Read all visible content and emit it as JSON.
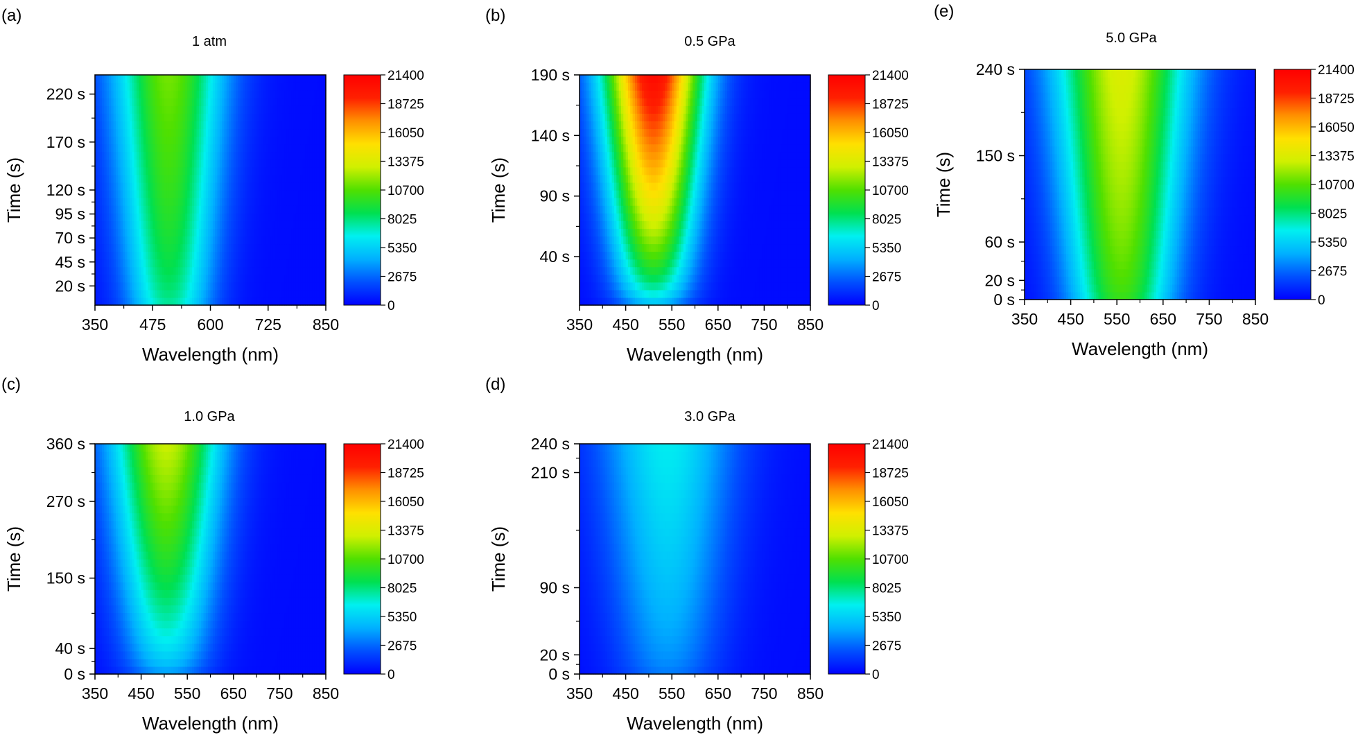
{
  "colorbar_ticks": [
    "21400",
    "18725",
    "16050",
    "13375",
    "10700",
    "8025",
    "5350",
    "2675",
    "0"
  ],
  "colormap": [
    "#0000ff",
    "#0050ff",
    "#00b0ff",
    "#00f0f0",
    "#00e050",
    "#50e000",
    "#d0f000",
    "#ffe000",
    "#ff9000",
    "#ff2000",
    "#ff0000"
  ],
  "chart_data": [
    {
      "type": "heatmap",
      "panel": "(a)",
      "title": "1 atm",
      "xlabel": "Wavelength (nm)",
      "ylabel": "Time (s)",
      "xlim": [
        350,
        850
      ],
      "ylim": [
        0,
        240
      ],
      "xticks": [
        "350",
        "475",
        "600",
        "725",
        "850"
      ],
      "yticks": [
        "20 s",
        "45 s",
        "70 s",
        "95 s",
        "120 s",
        "170 s",
        "220 s"
      ],
      "zlim": [
        0,
        21400
      ],
      "peak_wavelength_nm": 510,
      "peak_intensity_start": 7000,
      "peak_intensity_end": 11000,
      "band_fwhm_nm": 190
    },
    {
      "type": "heatmap",
      "panel": "(b)",
      "title": "0.5 GPa",
      "xlabel": "Wavelength (nm)",
      "ylabel": "Time (s)",
      "xlim": [
        350,
        850
      ],
      "ylim": [
        0,
        190
      ],
      "xticks": [
        "350",
        "450",
        "550",
        "650",
        "750",
        "850"
      ],
      "yticks": [
        "40 s",
        "90 s",
        "140 s",
        "190 s"
      ],
      "zlim": [
        0,
        21400
      ],
      "peak_wavelength_nm": 510,
      "peak_intensity_start": 3500,
      "peak_intensity_end": 20500,
      "band_fwhm_nm": 170
    },
    {
      "type": "heatmap",
      "panel": "(c)",
      "title": "1.0 GPa",
      "xlabel": "Wavelength (nm)",
      "ylabel": "Time (s)",
      "xlim": [
        350,
        850
      ],
      "ylim": [
        0,
        360
      ],
      "xticks": [
        "350",
        "450",
        "550",
        "650",
        "750",
        "850"
      ],
      "yticks": [
        "0 s",
        "40 s",
        "150 s",
        "270 s",
        "360 s"
      ],
      "zlim": [
        0,
        21400
      ],
      "peak_wavelength_nm": 505,
      "peak_intensity_start": 3000,
      "peak_intensity_end": 12500,
      "band_fwhm_nm": 190
    },
    {
      "type": "heatmap",
      "panel": "(d)",
      "title": "3.0 GPa",
      "xlabel": "Wavelength (nm)",
      "ylabel": "Time (s)",
      "xlim": [
        350,
        850
      ],
      "ylim": [
        0,
        240
      ],
      "xticks": [
        "350",
        "450",
        "550",
        "650",
        "750",
        "850"
      ],
      "yticks": [
        "0 s",
        "20 s",
        "90 s",
        "210 s",
        "240 s"
      ],
      "zlim": [
        0,
        21400
      ],
      "peak_wavelength_nm": 540,
      "peak_intensity_start": 2600,
      "peak_intensity_end": 6000,
      "band_fwhm_nm": 230
    },
    {
      "type": "heatmap",
      "panel": "(e)",
      "title": "5.0 GPa",
      "xlabel": "Wavelength (nm)",
      "ylabel": "Time (s)",
      "xlim": [
        350,
        850
      ],
      "ylim": [
        0,
        240
      ],
      "xticks": [
        "350",
        "450",
        "550",
        "650",
        "750",
        "850"
      ],
      "yticks": [
        "0 s",
        "20 s",
        "60 s",
        "150 s",
        "240 s"
      ],
      "zlim": [
        0,
        21400
      ],
      "peak_wavelength_nm": 560,
      "peak_intensity_start": 9500,
      "peak_intensity_end": 13000,
      "band_fwhm_nm": 230
    }
  ]
}
